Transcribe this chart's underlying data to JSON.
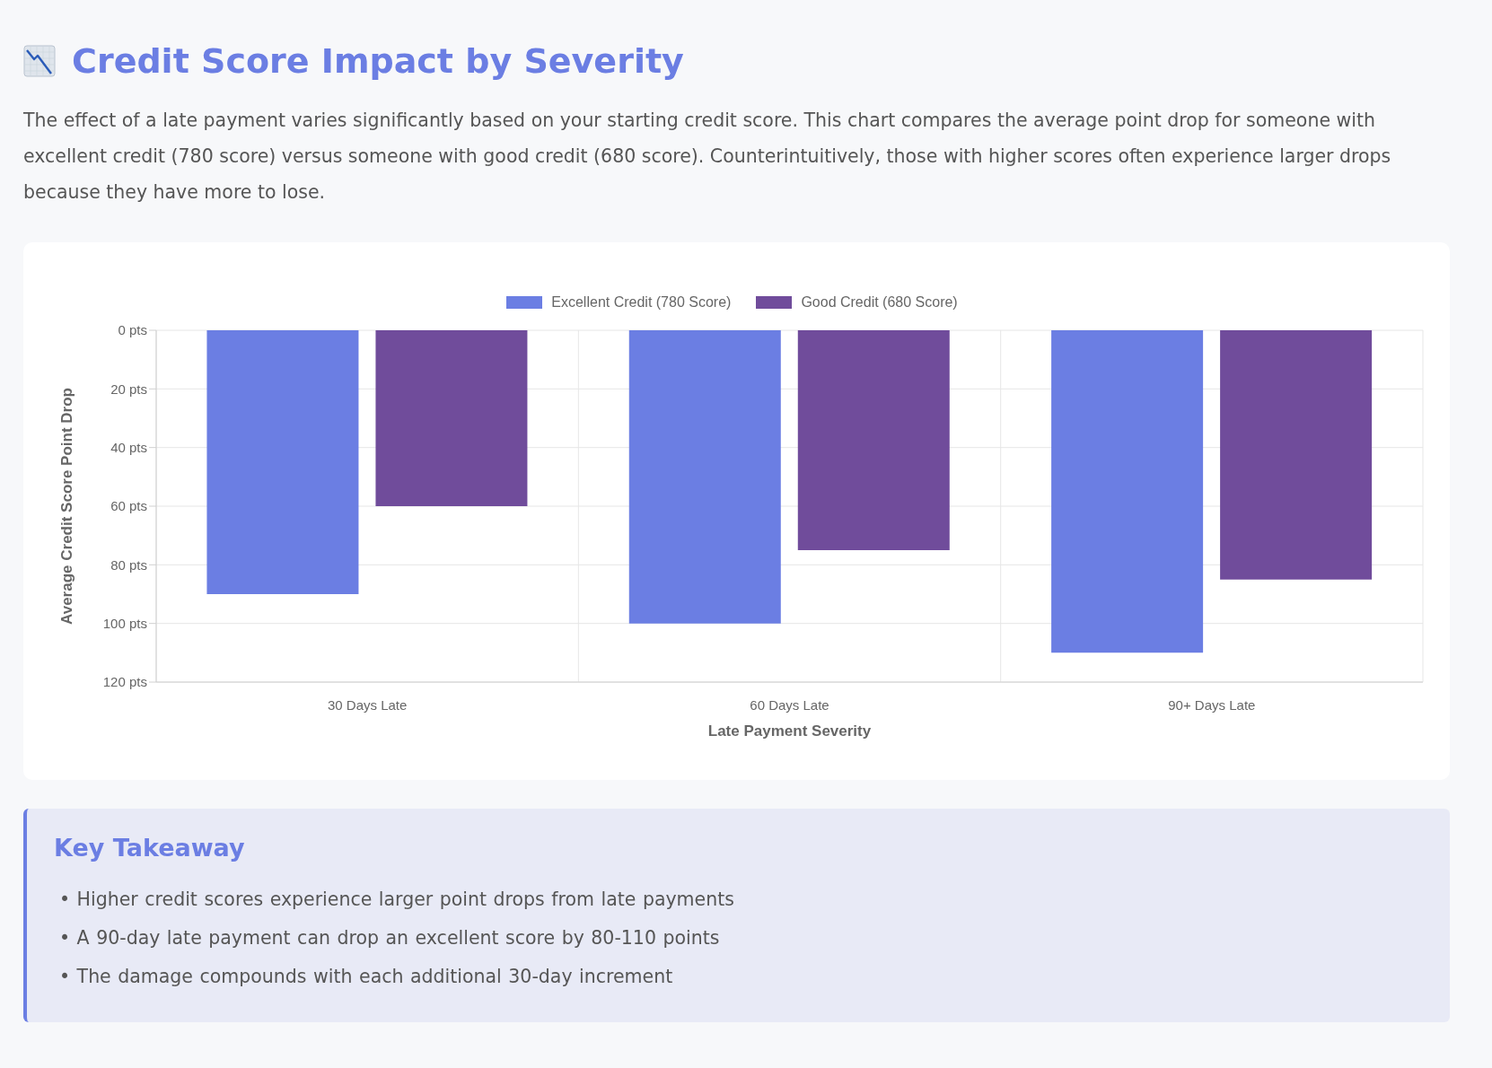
{
  "chart_data": {
    "type": "bar",
    "title": "Credit Score Impact by Severity",
    "subtitle": "The effect of a late payment varies significantly based on your starting credit score. This chart compares the average point drop for someone with excellent credit (780 score) versus someone with good credit (680 score). Counterintuitively, those with higher scores often experience larger drops because they have more to lose.",
    "xlabel": "Late Payment Severity",
    "ylabel": "Average Credit Score Point Drop",
    "categories": [
      "30 Days Late",
      "60 Days Late",
      "90+ Days Late"
    ],
    "series": [
      {
        "name": "Excellent Credit (780 Score)",
        "color": "#6b7ee3",
        "values": [
          90,
          100,
          110
        ]
      },
      {
        "name": "Good Credit (680 Score)",
        "color": "#704c9b",
        "values": [
          60,
          75,
          85
        ]
      }
    ],
    "ylim": [
      120,
      0
    ],
    "yticks": [
      {
        "value": 0,
        "label": "0 pts"
      },
      {
        "value": 20,
        "label": "20 pts"
      },
      {
        "value": 40,
        "label": "40 pts"
      },
      {
        "value": 60,
        "label": "60 pts"
      },
      {
        "value": 80,
        "label": "80 pts"
      },
      {
        "value": 100,
        "label": "100 pts"
      },
      {
        "value": 120,
        "label": "120 pts"
      }
    ],
    "grid": true,
    "legend": "top",
    "annotations": [
      "Key Takeaway",
      "• Higher credit scores experience larger point drops from late payments",
      "• A 90-day late payment can drop an excellent score by 80-110 points",
      "• The damage compounds with each additional 30-day increment"
    ]
  }
}
